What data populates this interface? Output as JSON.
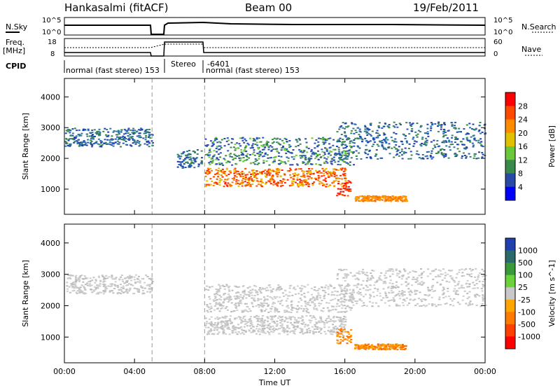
{
  "header": {
    "station": "Hankasalmi (fitACF)",
    "beam": "Beam 00",
    "date": "19/Feb/2011"
  },
  "aux_labels": {
    "nsky": "N.Sky",
    "nsearch": "N.Search",
    "freq_line1": "Freq.",
    "freq_line2": "[MHz]",
    "nave": "Nave",
    "cpid": "CPID",
    "noise_ticks_left": [
      "10^5",
      "10^0"
    ],
    "noise_ticks_right": [
      "10^5",
      "10^0"
    ],
    "freq_ticks_left": [
      "18",
      "8"
    ],
    "nave_ticks_right": [
      "60",
      "0"
    ]
  },
  "cpid_segments": [
    {
      "label": "normal (fast stereo) 153"
    },
    {
      "label": "Stereo"
    },
    {
      "label": "-6401"
    },
    {
      "label": "normal (fast stereo) 153"
    }
  ],
  "chart_data": [
    {
      "type": "heatmap",
      "quantity": "Power",
      "ylabel": "Slant Range [km]",
      "ylim": [
        180,
        4600
      ],
      "yticks": [
        "1000",
        "2000",
        "3000",
        "4000"
      ],
      "xlim_hours": [
        0,
        24
      ],
      "colorbar": {
        "label": "Power [dB]",
        "ticks": [
          "28",
          "24",
          "20",
          "16",
          "12",
          "8",
          "4"
        ],
        "colors": [
          "#ff0000",
          "#ff4a00",
          "#ff8c00",
          "#e0c000",
          "#6bc83a",
          "#3a8a4c",
          "#2a4aa8",
          "#0000ff"
        ]
      },
      "bands": [
        {
          "t0": 0.0,
          "t1": 5.0,
          "r0": 2400,
          "r1": 3000,
          "dominant": "blue"
        },
        {
          "t0": 6.4,
          "t1": 7.8,
          "r0": 1700,
          "r1": 2300,
          "dominant": "blue"
        },
        {
          "t0": 8.0,
          "t1": 16.0,
          "r0": 1100,
          "r1": 1700,
          "dominant": "orange-red"
        },
        {
          "t0": 8.0,
          "t1": 16.5,
          "r0": 1800,
          "r1": 2700,
          "dominant": "blue-green"
        },
        {
          "t0": 15.5,
          "t1": 24.0,
          "r0": 2000,
          "r1": 3200,
          "dominant": "blue"
        },
        {
          "t0": 15.5,
          "t1": 16.3,
          "r0": 800,
          "r1": 1300,
          "dominant": "red"
        },
        {
          "t0": 16.5,
          "t1": 19.5,
          "r0": 620,
          "r1": 800,
          "dominant": "orange"
        }
      ]
    },
    {
      "type": "heatmap",
      "quantity": "Velocity",
      "ylabel": "Slant Range [km]",
      "ylim": [
        180,
        4600
      ],
      "yticks": [
        "1000",
        "2000",
        "3000",
        "4000"
      ],
      "xlim_hours": [
        0,
        24
      ],
      "xticks": [
        "00:00",
        "04:00",
        "08:00",
        "12:00",
        "16:00",
        "20:00",
        "00:00"
      ],
      "xlabel": "Time UT",
      "colorbar": {
        "label": "Velocity [m s^-1]",
        "ticks": [
          "1000",
          "500",
          "100",
          "25",
          "-25",
          "-100",
          "-500",
          "-1000"
        ],
        "colors": [
          "#2040b0",
          "#2a6a6a",
          "#3a9a3a",
          "#6bd33a",
          "#c8c8c8",
          "#ffa500",
          "#ff7a00",
          "#ff4000",
          "#ff0000"
        ]
      },
      "bands": [
        {
          "t0": 0.0,
          "t1": 5.0,
          "r0": 2400,
          "r1": 3000,
          "dominant": "grey"
        },
        {
          "t0": 8.0,
          "t1": 16.0,
          "r0": 1100,
          "r1": 1700,
          "dominant": "grey"
        },
        {
          "t0": 8.0,
          "t1": 16.5,
          "r0": 1800,
          "r1": 2700,
          "dominant": "grey"
        },
        {
          "t0": 15.5,
          "t1": 24.0,
          "r0": 2000,
          "r1": 3200,
          "dominant": "grey"
        },
        {
          "t0": 15.5,
          "t1": 16.3,
          "r0": 800,
          "r1": 1300,
          "dominant": "orange"
        },
        {
          "t0": 16.5,
          "t1": 19.5,
          "r0": 620,
          "r1": 800,
          "dominant": "orange"
        }
      ]
    }
  ]
}
